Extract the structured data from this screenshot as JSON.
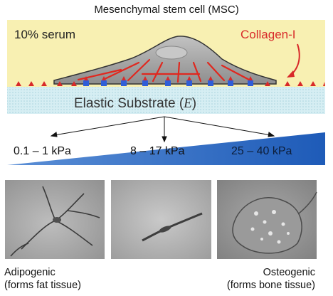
{
  "title": "Mesenchymal stem cell (MSC)",
  "cell_panel": {
    "serum_label": "10% serum",
    "collagen_label": "Collagen-I",
    "substrate_label": "Elastic Substrate (",
    "substrate_symbol": "E",
    "substrate_close": ")",
    "colors": {
      "background": "#f8f0b2",
      "substrate": "#d6eef3",
      "cell": "#aaaaaa",
      "fibers": "#e0281f",
      "collagen": "#d82a2a",
      "adhesions": "#2f5ed8"
    }
  },
  "stiffness": {
    "ranges": [
      "0.1 – 1 kPa",
      "8 – 17 kPa",
      "25 – 40 kPa"
    ],
    "wedge_color": "#1e5bb8"
  },
  "micrographs": [
    {
      "label_line1": "Adipogenic",
      "label_line2": "(forms fat tissue)"
    },
    {
      "label_line1": "",
      "label_line2": ""
    },
    {
      "label_line1": "Osteogenic",
      "label_line2": "(forms bone tissue)"
    }
  ]
}
